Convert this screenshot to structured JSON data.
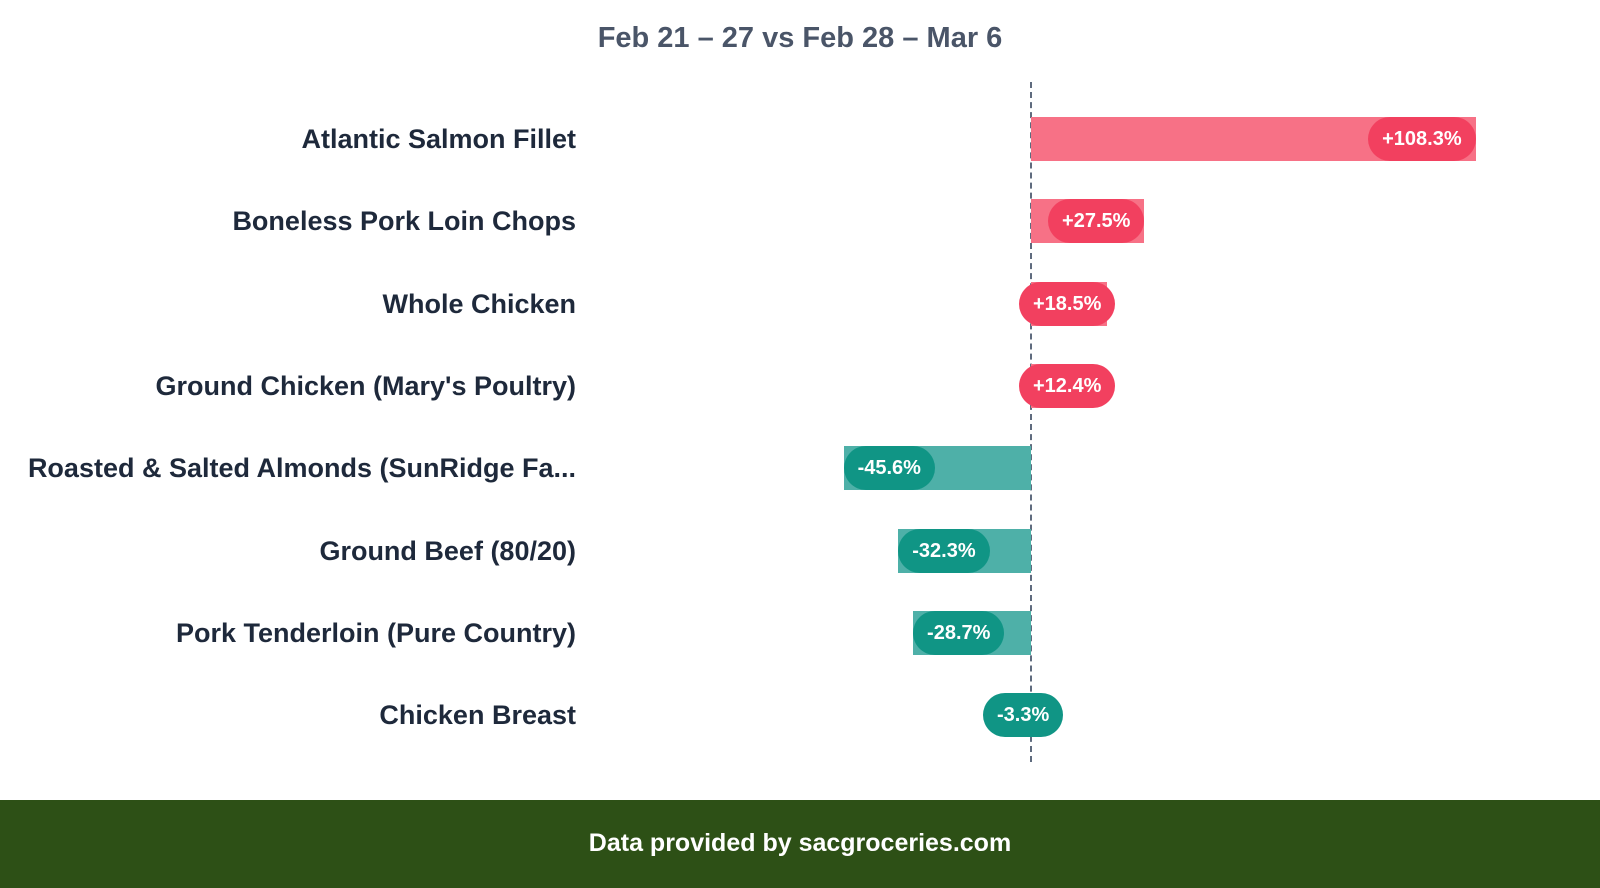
{
  "title": "Feb 21 – 27 vs Feb 28 – Mar 6",
  "footer": "Data provided by sacgroceries.com",
  "colors": {
    "positive_bar": "#f77186",
    "positive_pill": "#f2405f",
    "negative_bar": "#4eb0a8",
    "negative_pill": "#109585",
    "footer_bg": "#2d5016"
  },
  "rows": [
    {
      "label": "Atlantic Salmon Fillet",
      "value": 108.3,
      "display": "+108.3%"
    },
    {
      "label": "Boneless Pork Loin Chops",
      "value": 27.5,
      "display": "+27.5%"
    },
    {
      "label": "Whole Chicken",
      "value": 18.5,
      "display": "+18.5%"
    },
    {
      "label": "Ground Chicken (Mary's Poultry)",
      "value": 12.4,
      "display": "+12.4%"
    },
    {
      "label": "Roasted & Salted Almonds (SunRidge Fa...",
      "value": -45.6,
      "display": "-45.6%"
    },
    {
      "label": "Ground Beef (80/20)",
      "value": -32.3,
      "display": "-32.3%"
    },
    {
      "label": "Pork Tenderloin (Pure Country)",
      "value": -28.7,
      "display": "-28.7%"
    },
    {
      "label": "Chicken Breast",
      "value": -3.3,
      "display": "-3.3%"
    }
  ],
  "chart_data": {
    "type": "bar",
    "orientation": "horizontal",
    "title": "Feb 21 – 27 vs Feb 28 – Mar 6",
    "xlabel": "",
    "ylabel": "",
    "categories": [
      "Atlantic Salmon Fillet",
      "Boneless Pork Loin Chops",
      "Whole Chicken",
      "Ground Chicken (Mary's Poultry)",
      "Roasted & Salted Almonds (SunRidge Fa...",
      "Ground Beef (80/20)",
      "Pork Tenderloin (Pure Country)",
      "Chicken Breast"
    ],
    "values": [
      108.3,
      27.5,
      18.5,
      12.4,
      -45.6,
      -32.3,
      -28.7,
      -3.3
    ],
    "unit": "%",
    "zero_line": "dashed",
    "grid": false,
    "legend": "none",
    "annotation": "Data provided by sacgroceries.com"
  }
}
